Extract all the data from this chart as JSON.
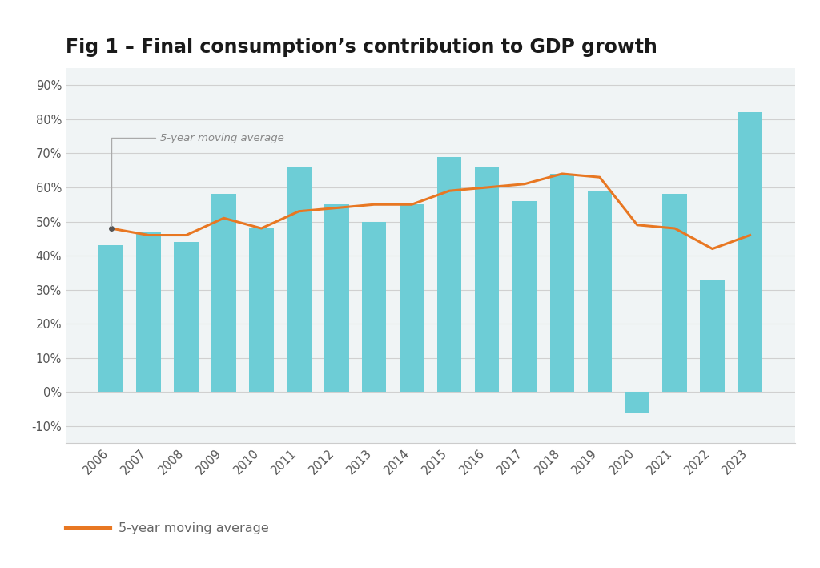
{
  "title": "Fig 1 – Final consumption’s contribution to GDP growth",
  "years": [
    2006,
    2007,
    2008,
    2009,
    2010,
    2011,
    2012,
    2013,
    2014,
    2015,
    2016,
    2017,
    2018,
    2019,
    2020,
    2021,
    2022,
    2023
  ],
  "bar_values": [
    43,
    47,
    44,
    58,
    48,
    66,
    55,
    50,
    55,
    69,
    66,
    56,
    64,
    59,
    -6,
    58,
    33,
    82
  ],
  "line_values": [
    48,
    46,
    46,
    51,
    48,
    53,
    54,
    55,
    55,
    59,
    60,
    61,
    64,
    63,
    49,
    48,
    42,
    46
  ],
  "bar_color": "#6dcdd6",
  "line_color": "#e87722",
  "figure_bg": "#ffffff",
  "plot_bg": "#f0f4f5",
  "ylim": [
    -15,
    95
  ],
  "yticks": [
    -10,
    0,
    10,
    20,
    30,
    40,
    50,
    60,
    70,
    80,
    90
  ],
  "annotation_text": "5-year moving average",
  "legend_line_label": "5-year moving average",
  "title_fontsize": 17,
  "tick_fontsize": 10.5,
  "legend_fontsize": 11.5
}
